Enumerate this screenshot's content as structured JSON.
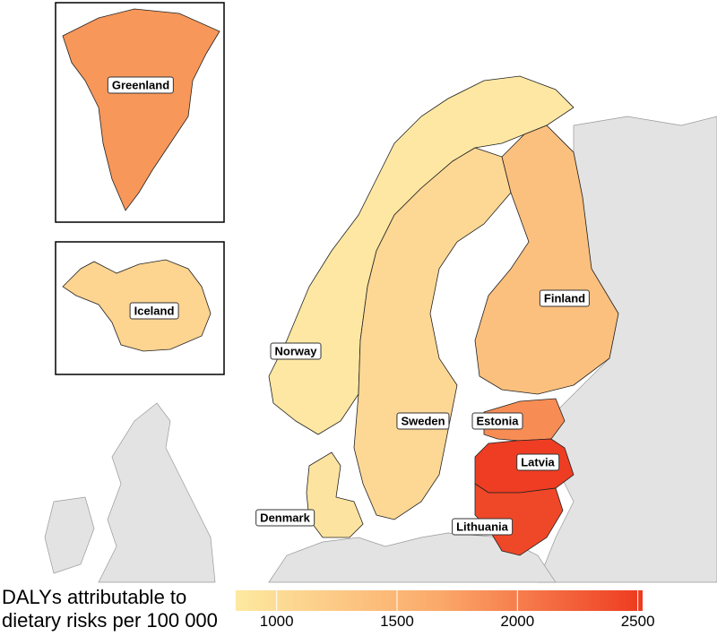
{
  "map": {
    "type": "choropleth",
    "legend": {
      "title_line1": "DALYs attributable to",
      "title_line2": "dietary risks per 100 000",
      "ticks": [
        "1000",
        "1500",
        "2000",
        "2500"
      ],
      "range": [
        830,
        2520
      ],
      "color_low": "#fde9a0",
      "color_high": "#ee3a1f"
    },
    "background_land_color": "#e3e3e3",
    "regions": [
      {
        "name": "Greenland",
        "value": 1800,
        "color": "#f7975a"
      },
      {
        "name": "Iceland",
        "value": 1150,
        "color": "#fdd490"
      },
      {
        "name": "Norway",
        "value": 950,
        "color": "#fde7a2"
      },
      {
        "name": "Sweden",
        "value": 1100,
        "color": "#fdd895"
      },
      {
        "name": "Finland",
        "value": 1350,
        "color": "#fcc07e"
      },
      {
        "name": "Denmark",
        "value": 1000,
        "color": "#fde3a0"
      },
      {
        "name": "Estonia",
        "value": 1850,
        "color": "#f78d55"
      },
      {
        "name": "Latvia",
        "value": 2450,
        "color": "#ee3d22"
      },
      {
        "name": "Lithuania",
        "value": 2350,
        "color": "#ef4828"
      }
    ]
  }
}
